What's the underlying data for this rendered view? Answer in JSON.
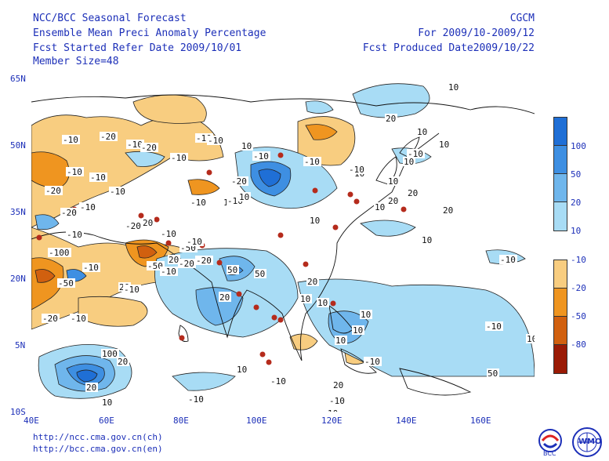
{
  "header": {
    "left": [
      "NCC/BCC Seasonal Forecast",
      "Ensemble Mean Preci Anomaly Percentage",
      "Fcst Started Refer Date 2009/10/01",
      "Member Size=48"
    ],
    "right": [
      "CGCM",
      "For 2009/10-2009/12",
      "Fcst Produced Date2009/10/22"
    ]
  },
  "axes": {
    "lat_ticks": [
      "65N",
      "50N",
      "35N",
      "20N",
      "5N",
      "10S"
    ],
    "lon_ticks": [
      "40E",
      "60E",
      "80E",
      "100E",
      "120E",
      "140E",
      "160E"
    ]
  },
  "legend": {
    "positive": [
      {
        "label": "100",
        "color": "#1f6fd6"
      },
      {
        "label": "50",
        "color": "#3e8fe2"
      },
      {
        "label": "20",
        "color": "#6fb6ec"
      },
      {
        "label": "10",
        "color": "#a8dcf5"
      }
    ],
    "negative": [
      {
        "label": "-10",
        "color": "#f8cd80"
      },
      {
        "label": "-20",
        "color": "#ef9520"
      },
      {
        "label": "-50",
        "color": "#d1600f"
      },
      {
        "label": "-80",
        "color": "#9a1a05"
      }
    ]
  },
  "contour_labels": [
    "-10",
    "-20",
    "-10",
    "-10",
    "-20",
    "-10",
    "-10",
    "-20",
    "-10",
    "-10",
    "-20",
    "20",
    "-20",
    "-10",
    "-50",
    "-10",
    "-100",
    "-50",
    "-10",
    "-10",
    "-20",
    "-10",
    "-20",
    "-50",
    "20",
    "-10",
    "-20",
    "-10",
    "-10",
    "-20",
    "10",
    "-10",
    "-10",
    "10",
    "-10",
    "50",
    "20",
    "10",
    "20",
    "10",
    "20",
    "10",
    "10",
    "-10",
    "10",
    "10",
    "50",
    "20",
    "20",
    "10",
    "10",
    "10",
    "20",
    "20",
    "10",
    "20",
    "-10",
    "-10",
    "10",
    "10",
    "10",
    "20",
    "-10",
    "10",
    "50",
    "100",
    "20",
    "10",
    "-10",
    "20",
    "-10",
    "-10",
    "10",
    "10",
    "10",
    "-10",
    "10",
    "-10",
    "-10"
  ],
  "footer": {
    "urls": [
      "http://ncc.cma.gov.cn(ch)",
      "http://bcc.cma.gov.cn(en)"
    ],
    "logos": [
      "BCC",
      "WMO"
    ]
  }
}
